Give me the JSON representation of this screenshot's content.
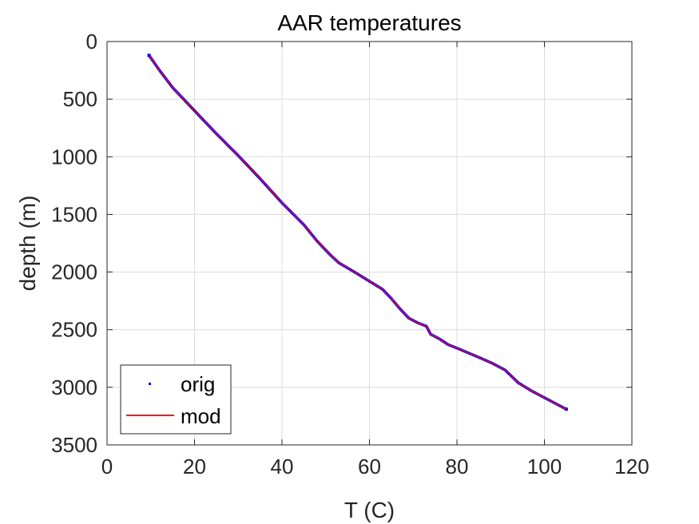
{
  "chart_data": {
    "type": "line",
    "title": "AAR temperatures",
    "xlabel": "T (C)",
    "ylabel": "depth (m)",
    "xlim": [
      0,
      120
    ],
    "ylim": [
      0,
      3500
    ],
    "y_reversed": true,
    "grid": true,
    "legend_position": "bottom-left",
    "x_ticks": [
      0,
      20,
      40,
      60,
      80,
      100,
      120
    ],
    "x_tick_labels": [
      "0",
      "20",
      "40",
      "60",
      "80",
      "100",
      "120"
    ],
    "y_ticks": [
      0,
      500,
      1000,
      1500,
      2000,
      2500,
      3000,
      3500
    ],
    "y_tick_labels": [
      "0",
      "500",
      "1000",
      "1500",
      "2000",
      "2500",
      "3000",
      "3500"
    ],
    "series": [
      {
        "name": "orig",
        "style": "points",
        "color": "#0000ff",
        "x": [
          9.6,
          12,
          15,
          20,
          25,
          30,
          35,
          40,
          45,
          48,
          51,
          53,
          57,
          60,
          63,
          65,
          67,
          69,
          71,
          73,
          74,
          76,
          78,
          80,
          85,
          88,
          91,
          94,
          97,
          100,
          103,
          105
        ],
        "y": [
          120,
          250,
          400,
          600,
          800,
          990,
          1190,
          1400,
          1590,
          1730,
          1850,
          1920,
          2010,
          2080,
          2150,
          2230,
          2320,
          2400,
          2440,
          2470,
          2540,
          2580,
          2630,
          2660,
          2740,
          2790,
          2850,
          2960,
          3030,
          3090,
          3150,
          3190
        ]
      },
      {
        "name": "mod",
        "style": "line",
        "color": "#ff0000",
        "x": [
          9.6,
          12,
          15,
          20,
          25,
          30,
          35,
          40,
          45,
          48,
          51,
          53,
          57,
          60,
          63,
          65,
          67,
          69,
          71,
          73,
          74,
          76,
          78,
          80,
          85,
          88,
          91,
          94,
          97,
          100,
          103,
          105
        ],
        "y": [
          120,
          250,
          400,
          600,
          800,
          990,
          1190,
          1400,
          1590,
          1730,
          1850,
          1920,
          2010,
          2080,
          2150,
          2230,
          2320,
          2400,
          2440,
          2470,
          2540,
          2580,
          2630,
          2660,
          2740,
          2790,
          2850,
          2960,
          3030,
          3090,
          3150,
          3190
        ]
      }
    ]
  }
}
